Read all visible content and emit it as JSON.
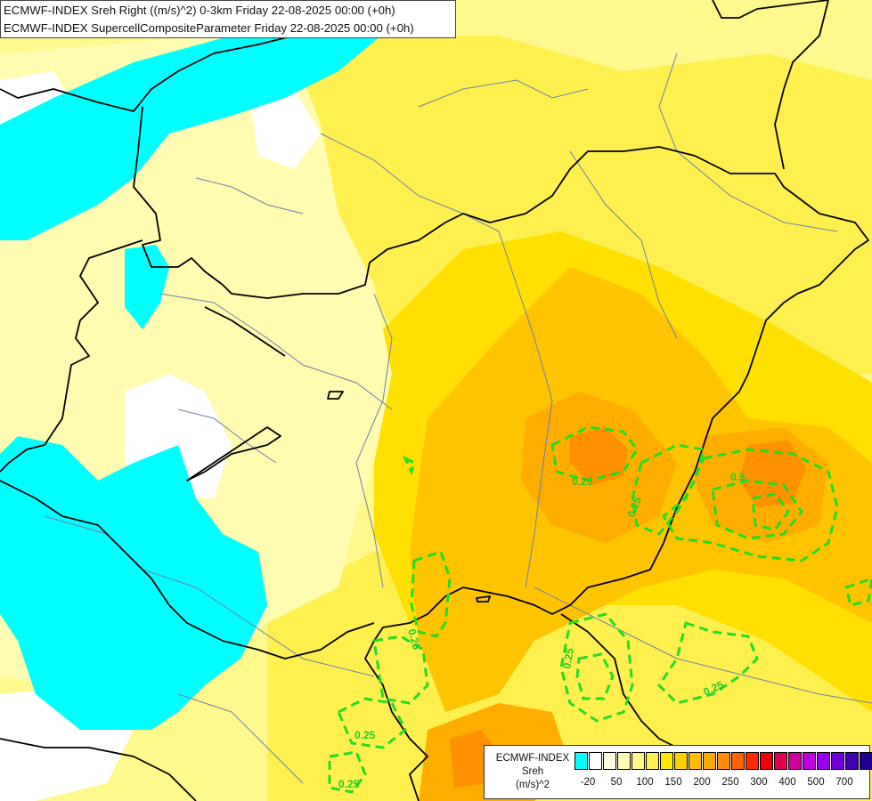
{
  "header": {
    "line1": "ECMWF-INDEX Sreh Right ((m/s)^2) 0-3km Friday 22-08-2025 00:00 (+0h)",
    "line2": "ECMWF-INDEX SupercellCompositeParameter Friday 22-08-2025 00:00 (+0h)"
  },
  "contour_labels": [
    "0.25",
    "0.5"
  ],
  "legend": {
    "line1": "ECMWF-INDEX",
    "line2": "Sreh",
    "line3": "(m/s)^2",
    "colors": [
      "#00ffff",
      "#ffffff",
      "#fffee0",
      "#fffbb0",
      "#fff888",
      "#fff050",
      "#ffe800",
      "#ffd000",
      "#ffbc00",
      "#ffa800",
      "#ff8c00",
      "#ff6400",
      "#ff2800",
      "#f00000",
      "#e00050",
      "#d000a0",
      "#c000e0",
      "#9800f0",
      "#7000d8",
      "#4000b0",
      "#200090"
    ],
    "ticks": [
      "-20",
      "50",
      "100",
      "150",
      "200",
      "250",
      "300",
      "400",
      "500",
      "700"
    ]
  },
  "map_colors": {
    "cyan": "#00ffff",
    "white": "#ffffff",
    "pale_yellow": "#fffbb0",
    "light_yellow": "#fff88c",
    "yellow": "#fff050",
    "gold": "#ffe000",
    "amber": "#ffc400",
    "orange": "#ffae00",
    "dark_orange": "#ff9000",
    "border": "#000000",
    "river": "#6e7fa8",
    "scp_contour": "#22dd22"
  }
}
